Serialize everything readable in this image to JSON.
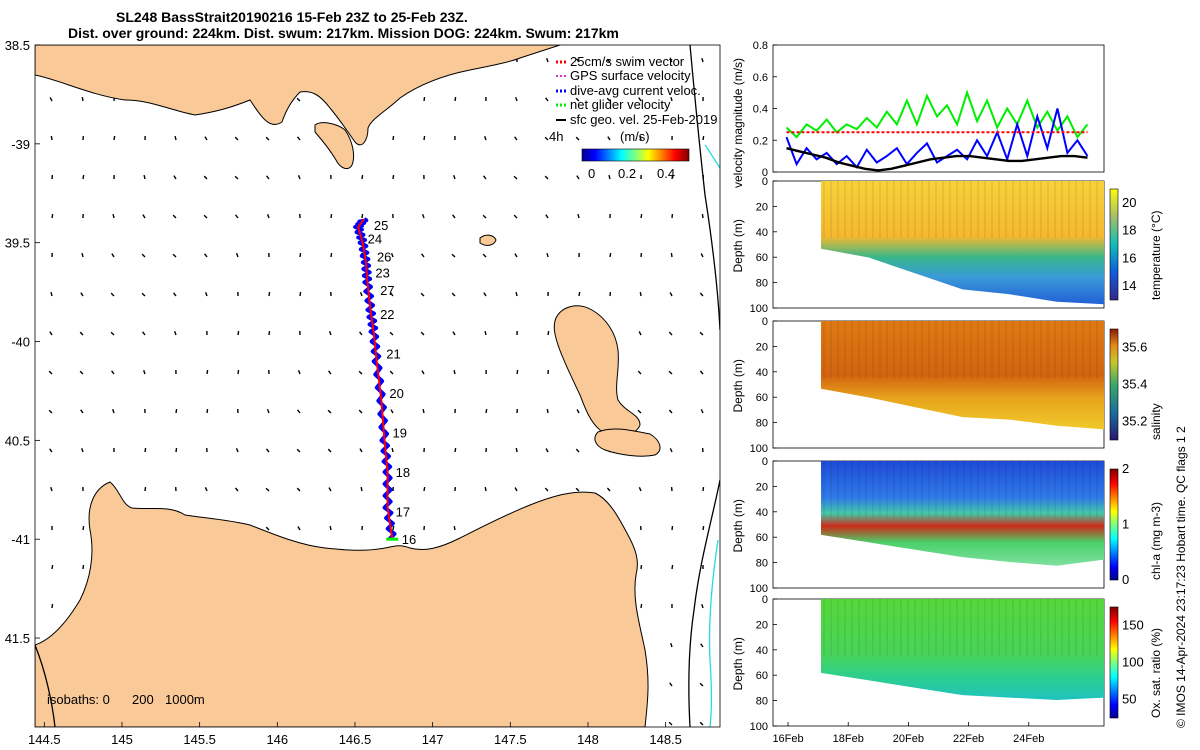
{
  "title": {
    "line1": "SL248 BassStrait20190216 15-Feb 23Z to 25-Feb 23Z.",
    "line2": "Dist. over ground: 224km. Dist. swum: 217km. Mission DOG: 224km. Swum: 217km"
  },
  "colors": {
    "land": "#f9c998",
    "track": "#0000ff",
    "swim": "#ff0000",
    "glider": "#00ee00",
    "isobath_200": "#000000",
    "isobath_1000": "#22dddd"
  },
  "chart_data": [
    {
      "type": "map",
      "lon_ticks": [
        "144.5",
        "145",
        "145.5",
        "146",
        "146.5",
        "147",
        "147.5",
        "148",
        "148.5"
      ],
      "lat_ticks": [
        "38.5",
        "-39",
        "39.5",
        "-40",
        "40.5",
        "-41",
        "41.5"
      ],
      "xlim": [
        144.44,
        148.85
      ],
      "ylim": [
        -41.95,
        -38.5
      ],
      "legend": {
        "placement": "top-right",
        "entries": [
          "25cm/s swim vector",
          "GPS surface velocity",
          "dive-avg current veloc.",
          "net glider velocity",
          "sfc geo. vel. 25-Feb-2019"
        ],
        "time_label": "4h",
        "colorbar_unit": "(m/s)",
        "colorbar_ticks": [
          "0",
          "0.2",
          "0.4"
        ]
      },
      "isobaths_label": "isobaths: 0",
      "isobaths_values": [
        "200",
        "1000m"
      ],
      "day_labels": [
        {
          "label": "25",
          "lon": 146.57,
          "lat": -39.41
        },
        {
          "label": "24",
          "lon": 146.53,
          "lat": -39.48
        },
        {
          "label": "26",
          "lon": 146.59,
          "lat": -39.57
        },
        {
          "label": "23",
          "lon": 146.58,
          "lat": -39.65
        },
        {
          "label": "27",
          "lon": 146.61,
          "lat": -39.74
        },
        {
          "label": "22",
          "lon": 146.61,
          "lat": -39.86
        },
        {
          "label": "21",
          "lon": 146.65,
          "lat": -40.06
        },
        {
          "label": "20",
          "lon": 146.67,
          "lat": -40.26
        },
        {
          "label": "19",
          "lon": 146.69,
          "lat": -40.46
        },
        {
          "label": "18",
          "lon": 146.71,
          "lat": -40.66
        },
        {
          "label": "17",
          "lon": 146.71,
          "lat": -40.86
        },
        {
          "label": "16",
          "lon": 146.75,
          "lat": -41.0
        }
      ],
      "track": [
        [
          146.74,
          -41.0
        ],
        [
          146.71,
          -40.84
        ],
        [
          146.71,
          -40.66
        ],
        [
          146.69,
          -40.5
        ],
        [
          146.67,
          -40.3
        ],
        [
          146.64,
          -40.1
        ],
        [
          146.62,
          -39.95
        ],
        [
          146.6,
          -39.84
        ],
        [
          146.58,
          -39.7
        ],
        [
          146.57,
          -39.6
        ],
        [
          146.55,
          -39.5
        ],
        [
          146.52,
          -39.42
        ],
        [
          146.56,
          -39.38
        ]
      ]
    },
    {
      "type": "line",
      "ylabel": "velocity magnitude (m/s)",
      "ylim": [
        0,
        0.8
      ],
      "yticks": [
        "0",
        "0.2",
        "0.4",
        "0.6",
        "0.8"
      ],
      "xlim": [
        15.5,
        26.5
      ],
      "series": [
        {
          "color": "#00ee00",
          "values": [
            0.28,
            0.22,
            0.3,
            0.26,
            0.33,
            0.25,
            0.3,
            0.27,
            0.34,
            0.28,
            0.38,
            0.3,
            0.45,
            0.3,
            0.48,
            0.35,
            0.42,
            0.3,
            0.5,
            0.32,
            0.45,
            0.28,
            0.4,
            0.3,
            0.45,
            0.28,
            0.38,
            0.26,
            0.35,
            0.22,
            0.3
          ]
        },
        {
          "color": "#0000ff",
          "values": [
            0.22,
            0.05,
            0.15,
            0.08,
            0.12,
            0.05,
            0.1,
            0.03,
            0.14,
            0.06,
            0.1,
            0.15,
            0.05,
            0.12,
            0.18,
            0.06,
            0.1,
            0.14,
            0.08,
            0.2,
            0.1,
            0.25,
            0.08,
            0.3,
            0.1,
            0.35,
            0.15,
            0.4,
            0.12,
            0.2,
            0.1
          ]
        },
        {
          "color": "#000000",
          "values": [
            0.15,
            0.13,
            0.11,
            0.09,
            0.06,
            0.04,
            0.02,
            0.01,
            0.02,
            0.04,
            0.06,
            0.08,
            0.09,
            0.1,
            0.1,
            0.09,
            0.08,
            0.07,
            0.07,
            0.08,
            0.09,
            0.1,
            0.1,
            0.09
          ]
        },
        {
          "color": "#ff0000",
          "dashed": true,
          "values": [
            0.25,
            0.25
          ]
        }
      ]
    },
    {
      "type": "heatmap",
      "ylabel": "Depth (m)",
      "clabel": "temperature (°C)",
      "yticks": [
        "0",
        "20",
        "40",
        "60",
        "80",
        "100"
      ],
      "cticks": [
        "14",
        "16",
        "18",
        "20"
      ],
      "clim": [
        13,
        21
      ],
      "colormap": "parula",
      "layers": [
        {
          "depth_to": 40,
          "value": 19.2
        },
        {
          "depth_to": 55,
          "value": 17.5
        },
        {
          "depth_to": 70,
          "value": 15.5
        },
        {
          "depth_to": 85,
          "value": 14.0
        }
      ]
    },
    {
      "type": "heatmap",
      "ylabel": "Depth (m)",
      "clabel": "salinity",
      "yticks": [
        "0",
        "20",
        "40",
        "60",
        "80",
        "100"
      ],
      "cticks": [
        "35.2",
        "35.4",
        "35.6"
      ],
      "clim": [
        35.1,
        35.7
      ],
      "colormap": "haline",
      "layers": [
        {
          "depth_to": 45,
          "value": 35.58
        },
        {
          "depth_to": 60,
          "value": 35.5
        },
        {
          "depth_to": 80,
          "value": 35.43
        }
      ]
    },
    {
      "type": "heatmap",
      "ylabel": "Depth (m)",
      "clabel": "chl-a (mg m-3)",
      "yticks": [
        "0",
        "20",
        "40",
        "60",
        "80",
        "100"
      ],
      "cticks": [
        "0",
        "1",
        "2"
      ],
      "clim": [
        0,
        2
      ],
      "colormap": "jet",
      "layers": [
        {
          "depth_to": 30,
          "value": 0.35
        },
        {
          "depth_to": 50,
          "value": 0.7
        },
        {
          "depth_to": 62,
          "value": 1.8
        },
        {
          "depth_to": 80,
          "value": 0.9
        }
      ]
    },
    {
      "type": "heatmap",
      "ylabel": "Depth (m)",
      "clabel": "Ox. sat. ratio (%)",
      "yticks": [
        "0",
        "20",
        "40",
        "60",
        "80",
        "100"
      ],
      "cticks": [
        "50",
        "100",
        "150"
      ],
      "clim": [
        25,
        175
      ],
      "colormap": "jet",
      "xticks": [
        "16Feb",
        "18Feb",
        "20Feb",
        "22Feb",
        "24Feb"
      ],
      "layers": [
        {
          "depth_to": 50,
          "value": 108
        },
        {
          "depth_to": 70,
          "value": 100
        },
        {
          "depth_to": 85,
          "value": 88
        }
      ]
    }
  ],
  "footer": "© IMOS 14-Apr-2024 23:17:23 Hobart time. QC flags 1  2"
}
